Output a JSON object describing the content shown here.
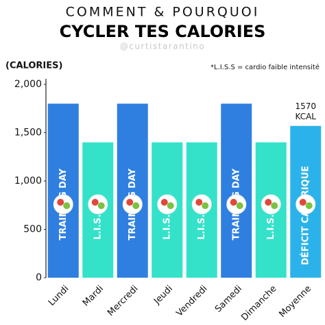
{
  "chart_data": {
    "type": "bar",
    "title": "COMMENT & POURQUOI",
    "subtitle": "CYCLER TES CALORIES",
    "handle": "@curtistarantino",
    "y_label": "(CALORIES)",
    "annotation": "*L.I.S.S = cardio faible intensité",
    "categories": [
      "Lundi",
      "Mardi",
      "Mercredi",
      "Jeudi",
      "Vendredi",
      "Samedi",
      "Dimanche",
      "Moyenne"
    ],
    "values": [
      1800,
      1400,
      1800,
      1400,
      1400,
      1800,
      1400,
      1570
    ],
    "value_labels": [
      null,
      null,
      null,
      null,
      null,
      null,
      null,
      "1570 KCAL"
    ],
    "bar_labels": [
      "TRAINING DAY",
      "L.I.S.S",
      "TRAINING DAY",
      "L.I.S.S",
      "L.I.S.S",
      "TRAINING DAY",
      "L.I.S.S",
      "DÉFICIT CALORIQUE"
    ],
    "colors": [
      "#2f7fe0",
      "#34e2c9",
      "#2f7fe0",
      "#34e2c9",
      "#34e2c9",
      "#2f7fe0",
      "#34e2c9",
      "#2cb2ea"
    ],
    "ylim": [
      0,
      2000
    ],
    "yticks": [
      0,
      500,
      {
        "value": 1000,
        "label": "1,000"
      },
      {
        "value": 1500,
        "label": "1,500"
      },
      {
        "value": 2000,
        "label": "2,000"
      }
    ],
    "grid": false
  }
}
